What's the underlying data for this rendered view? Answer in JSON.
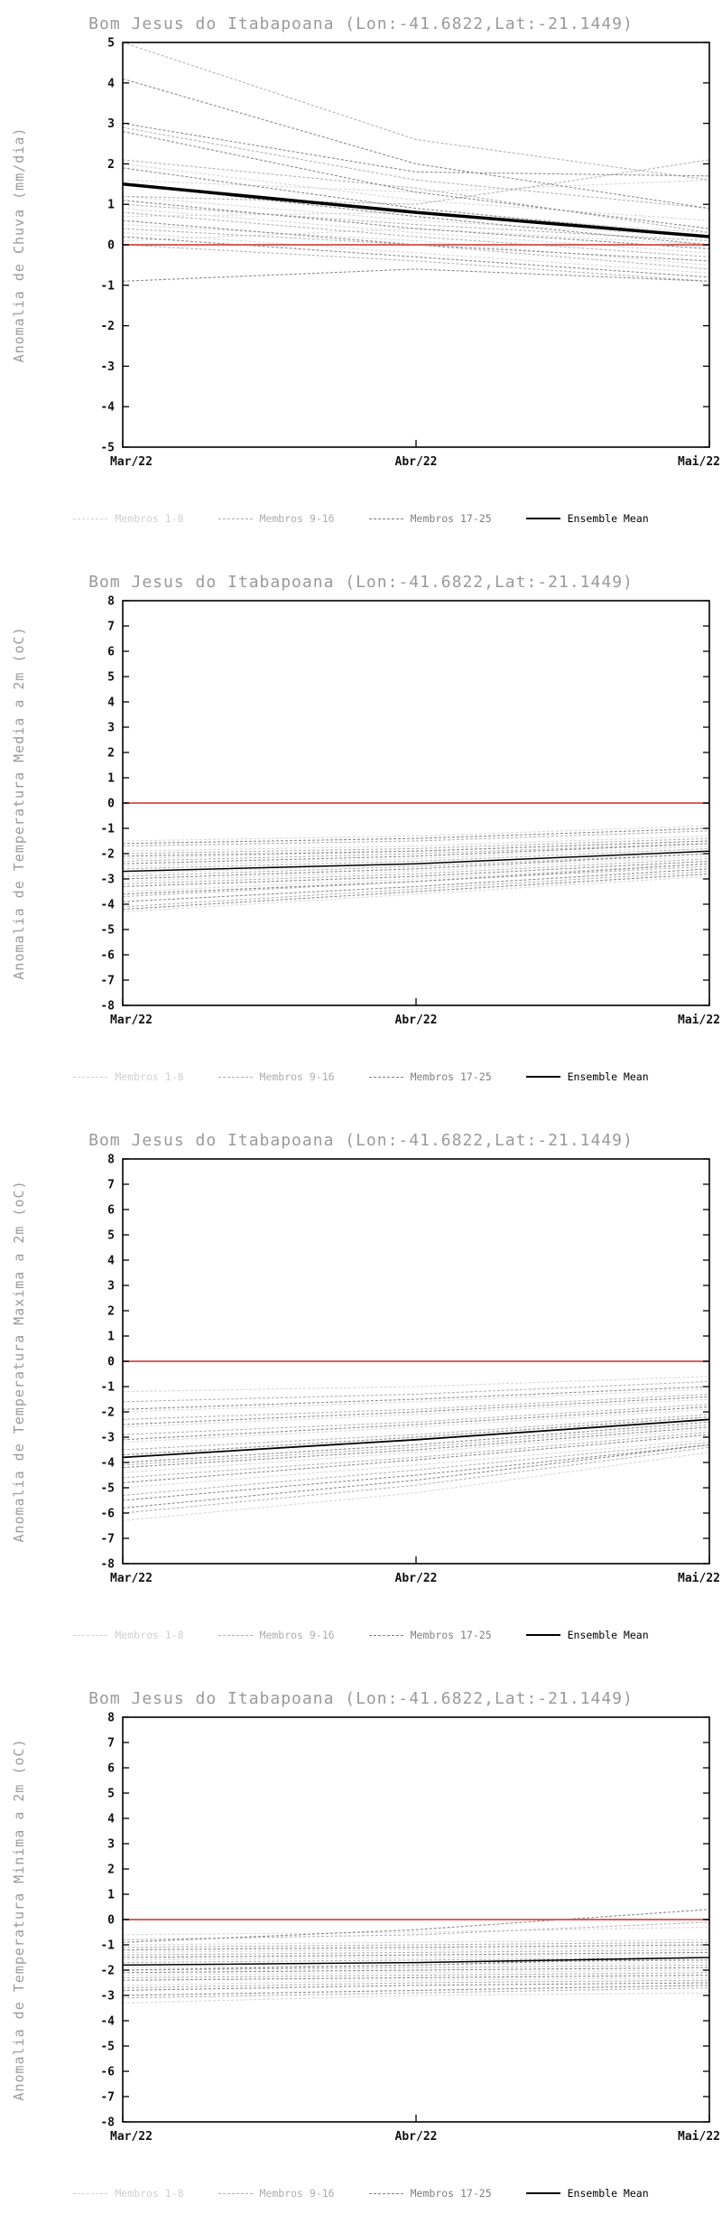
{
  "group_colors": [
    "#d8d8d8",
    "#b4b4b4",
    "#8c8c8c"
  ],
  "legend": {
    "items": [
      {
        "label": "Membros 1-8",
        "color": "#d0d0d0",
        "style": "dashed"
      },
      {
        "label": "Membros 9-16",
        "color": "#adadad",
        "style": "dashed"
      },
      {
        "label": "Membros 17-25",
        "color": "#808080",
        "style": "dashed"
      },
      {
        "label": "Ensemble Mean",
        "color": "#000000",
        "style": "solid"
      }
    ]
  },
  "chart_data": [
    {
      "type": "line",
      "title": "Bom Jesus do Itabapoana (Lon:-41.6822,Lat:-21.1449)",
      "ylabel": "Anomalia de Chuva (mm/dia)",
      "x": [
        "Mar/22",
        "Abr/22",
        "Mai/22"
      ],
      "ylim": [
        -5,
        5
      ],
      "ytick_step": 1,
      "zero_line_color": "#d9605c",
      "mean": {
        "name": "Ensemble Mean",
        "color": "#000000",
        "width": 3.5,
        "values": [
          1.5,
          0.8,
          0.2
        ]
      },
      "members": [
        {
          "g": 0,
          "v": [
            2.0,
            1.1,
            0.6
          ]
        },
        {
          "g": 0,
          "v": [
            1.6,
            1.3,
            1.6
          ]
        },
        {
          "g": 0,
          "v": [
            1.2,
            0.6,
            0.2
          ]
        },
        {
          "g": 0,
          "v": [
            0.9,
            0.3,
            -0.2
          ]
        },
        {
          "g": 0,
          "v": [
            0.7,
            0.8,
            0.3
          ]
        },
        {
          "g": 0,
          "v": [
            0.5,
            0.1,
            -0.5
          ]
        },
        {
          "g": 0,
          "v": [
            0.3,
            -0.2,
            -0.7
          ]
        },
        {
          "g": 0,
          "v": [
            0.1,
            0.4,
            0.0
          ]
        },
        {
          "g": 1,
          "v": [
            5.0,
            2.6,
            1.6
          ]
        },
        {
          "g": 1,
          "v": [
            2.9,
            1.6,
            0.9
          ]
        },
        {
          "g": 1,
          "v": [
            1.2,
            1.0,
            2.1
          ]
        },
        {
          "g": 1,
          "v": [
            2.1,
            1.4,
            0.3
          ]
        },
        {
          "g": 1,
          "v": [
            1.0,
            0.5,
            0.1
          ]
        },
        {
          "g": 1,
          "v": [
            0.8,
            0.2,
            -0.3
          ]
        },
        {
          "g": 1,
          "v": [
            0.4,
            0.0,
            -0.6
          ]
        },
        {
          "g": 1,
          "v": [
            0.0,
            -0.4,
            -0.9
          ]
        },
        {
          "g": 2,
          "v": [
            4.1,
            2.0,
            0.9
          ]
        },
        {
          "g": 2,
          "v": [
            3.0,
            1.8,
            1.7
          ]
        },
        {
          "g": 2,
          "v": [
            2.8,
            1.3,
            0.4
          ]
        },
        {
          "g": 2,
          "v": [
            1.9,
            0.9,
            0.2
          ]
        },
        {
          "g": 2,
          "v": [
            1.5,
            0.7,
            0.0
          ]
        },
        {
          "g": 2,
          "v": [
            1.1,
            0.4,
            -0.1
          ]
        },
        {
          "g": 2,
          "v": [
            0.6,
            0.0,
            -0.4
          ]
        },
        {
          "g": 2,
          "v": [
            0.2,
            -0.3,
            -0.8
          ]
        },
        {
          "g": 2,
          "v": [
            -0.9,
            -0.6,
            -0.9
          ]
        }
      ]
    },
    {
      "type": "line",
      "title": "Bom Jesus do Itabapoana (Lon:-41.6822,Lat:-21.1449)",
      "ylabel": "Anomalia de Temperatura Media a 2m (oC)",
      "x": [
        "Mar/22",
        "Abr/22",
        "Mai/22"
      ],
      "ylim": [
        -8,
        8
      ],
      "ytick_step": 1,
      "zero_line_color": "#d9605c",
      "mean": {
        "name": "Ensemble Mean",
        "color": "#000000",
        "width": 1.5,
        "values": [
          -2.7,
          -2.4,
          -1.9
        ]
      },
      "members": [
        {
          "g": 0,
          "v": [
            -1.5,
            -1.3,
            -0.9
          ]
        },
        {
          "g": 0,
          "v": [
            -1.9,
            -1.7,
            -1.3
          ]
        },
        {
          "g": 0,
          "v": [
            -2.2,
            -1.9,
            -1.5
          ]
        },
        {
          "g": 0,
          "v": [
            -2.5,
            -2.2,
            -1.7
          ]
        },
        {
          "g": 0,
          "v": [
            -2.8,
            -2.4,
            -1.9
          ]
        },
        {
          "g": 0,
          "v": [
            -3.1,
            -2.7,
            -2.1
          ]
        },
        {
          "g": 0,
          "v": [
            -3.5,
            -3.0,
            -2.4
          ]
        },
        {
          "g": 0,
          "v": [
            -4.3,
            -3.6,
            -2.9
          ]
        },
        {
          "g": 1,
          "v": [
            -1.7,
            -1.5,
            -1.1
          ]
        },
        {
          "g": 1,
          "v": [
            -2.0,
            -1.8,
            -1.4
          ]
        },
        {
          "g": 1,
          "v": [
            -2.3,
            -2.0,
            -1.6
          ]
        },
        {
          "g": 1,
          "v": [
            -2.6,
            -2.3,
            -1.8
          ]
        },
        {
          "g": 1,
          "v": [
            -2.9,
            -2.5,
            -2.0
          ]
        },
        {
          "g": 1,
          "v": [
            -3.2,
            -2.8,
            -2.2
          ]
        },
        {
          "g": 1,
          "v": [
            -3.7,
            -3.1,
            -2.5
          ]
        },
        {
          "g": 1,
          "v": [
            -4.1,
            -3.4,
            -2.7
          ]
        },
        {
          "g": 2,
          "v": [
            -1.6,
            -1.4,
            -1.0
          ]
        },
        {
          "g": 2,
          "v": [
            -2.1,
            -1.9,
            -1.5
          ]
        },
        {
          "g": 2,
          "v": [
            -2.4,
            -2.1,
            -1.6
          ]
        },
        {
          "g": 2,
          "v": [
            -2.7,
            -2.4,
            -1.9
          ]
        },
        {
          "g": 2,
          "v": [
            -3.0,
            -2.6,
            -2.0
          ]
        },
        {
          "g": 2,
          "v": [
            -3.3,
            -2.9,
            -2.3
          ]
        },
        {
          "g": 2,
          "v": [
            -3.6,
            -3.1,
            -2.4
          ]
        },
        {
          "g": 2,
          "v": [
            -3.9,
            -3.3,
            -2.6
          ]
        },
        {
          "g": 2,
          "v": [
            -4.2,
            -3.5,
            -2.8
          ]
        }
      ]
    },
    {
      "type": "line",
      "title": "Bom Jesus do Itabapoana (Lon:-41.6822,Lat:-21.1449)",
      "ylabel": "Anomalia de Temperatura Maxima a 2m (oC)",
      "x": [
        "Mar/22",
        "Abr/22",
        "Mai/22"
      ],
      "ylim": [
        -8,
        8
      ],
      "ytick_step": 1,
      "zero_line_color": "#d9605c",
      "mean": {
        "name": "Ensemble Mean",
        "color": "#000000",
        "width": 1.8,
        "values": [
          -3.8,
          -3.1,
          -2.3
        ]
      },
      "members": [
        {
          "g": 0,
          "v": [
            -1.2,
            -1.0,
            -0.6
          ]
        },
        {
          "g": 0,
          "v": [
            -2.0,
            -1.6,
            -1.1
          ]
        },
        {
          "g": 0,
          "v": [
            -2.6,
            -2.1,
            -1.5
          ]
        },
        {
          "g": 0,
          "v": [
            -3.2,
            -2.6,
            -1.9
          ]
        },
        {
          "g": 0,
          "v": [
            -3.8,
            -3.1,
            -2.3
          ]
        },
        {
          "g": 0,
          "v": [
            -4.4,
            -3.6,
            -2.7
          ]
        },
        {
          "g": 0,
          "v": [
            -5.0,
            -4.1,
            -3.1
          ]
        },
        {
          "g": 0,
          "v": [
            -6.3,
            -5.2,
            -3.6
          ]
        },
        {
          "g": 1,
          "v": [
            -1.6,
            -1.3,
            -0.8
          ]
        },
        {
          "g": 1,
          "v": [
            -2.3,
            -1.9,
            -1.3
          ]
        },
        {
          "g": 1,
          "v": [
            -2.9,
            -2.4,
            -1.7
          ]
        },
        {
          "g": 1,
          "v": [
            -3.5,
            -2.9,
            -2.1
          ]
        },
        {
          "g": 1,
          "v": [
            -4.1,
            -3.4,
            -2.5
          ]
        },
        {
          "g": 1,
          "v": [
            -4.6,
            -3.8,
            -2.8
          ]
        },
        {
          "g": 1,
          "v": [
            -5.3,
            -4.3,
            -3.2
          ]
        },
        {
          "g": 1,
          "v": [
            -6.0,
            -4.9,
            -3.4
          ]
        },
        {
          "g": 2,
          "v": [
            -1.9,
            -1.5,
            -1.0
          ]
        },
        {
          "g": 2,
          "v": [
            -2.5,
            -2.0,
            -1.4
          ]
        },
        {
          "g": 2,
          "v": [
            -3.1,
            -2.5,
            -1.8
          ]
        },
        {
          "g": 2,
          "v": [
            -3.7,
            -3.0,
            -2.2
          ]
        },
        {
          "g": 2,
          "v": [
            -4.2,
            -3.5,
            -2.6
          ]
        },
        {
          "g": 2,
          "v": [
            -4.8,
            -3.9,
            -2.9
          ]
        },
        {
          "g": 2,
          "v": [
            -5.5,
            -4.5,
            -3.3
          ]
        },
        {
          "g": 2,
          "v": [
            -5.8,
            -4.7,
            -3.3
          ]
        },
        {
          "g": 2,
          "v": [
            -4.0,
            -3.3,
            -2.4
          ]
        }
      ]
    },
    {
      "type": "line",
      "title": "Bom Jesus do Itabapoana (Lon:-41.6822,Lat:-21.1449)",
      "ylabel": "Anomalia de Temperatura Minima a 2m (oC)",
      "x": [
        "Mar/22",
        "Abr/22",
        "Mai/22"
      ],
      "ylim": [
        -8,
        8
      ],
      "ytick_step": 1,
      "zero_line_color": "#d9605c",
      "mean": {
        "name": "Ensemble Mean",
        "color": "#000000",
        "width": 1.5,
        "values": [
          -1.8,
          -1.7,
          -1.5
        ]
      },
      "members": [
        {
          "g": 0,
          "v": [
            -0.6,
            -0.5,
            -0.3
          ]
        },
        {
          "g": 0,
          "v": [
            -1.0,
            -0.9,
            -0.8
          ]
        },
        {
          "g": 0,
          "v": [
            -1.3,
            -1.2,
            -1.1
          ]
        },
        {
          "g": 0,
          "v": [
            -1.6,
            -1.5,
            -1.4
          ]
        },
        {
          "g": 0,
          "v": [
            -1.9,
            -1.8,
            -1.7
          ]
        },
        {
          "g": 0,
          "v": [
            -2.2,
            -2.1,
            -2.0
          ]
        },
        {
          "g": 0,
          "v": [
            -2.6,
            -2.4,
            -2.3
          ]
        },
        {
          "g": 0,
          "v": [
            -3.3,
            -3.0,
            -2.9
          ]
        },
        {
          "g": 1,
          "v": [
            -0.8,
            -0.6,
            -0.1
          ]
        },
        {
          "g": 1,
          "v": [
            -1.1,
            -1.0,
            -0.9
          ]
        },
        {
          "g": 1,
          "v": [
            -1.4,
            -1.3,
            -1.2
          ]
        },
        {
          "g": 1,
          "v": [
            -1.7,
            -1.6,
            -1.5
          ]
        },
        {
          "g": 1,
          "v": [
            -2.0,
            -1.9,
            -1.8
          ]
        },
        {
          "g": 1,
          "v": [
            -2.3,
            -2.2,
            -2.1
          ]
        },
        {
          "g": 1,
          "v": [
            -2.7,
            -2.5,
            -2.4
          ]
        },
        {
          "g": 1,
          "v": [
            -3.1,
            -2.9,
            -2.7
          ]
        },
        {
          "g": 2,
          "v": [
            -0.9,
            -0.4,
            0.4
          ]
        },
        {
          "g": 2,
          "v": [
            -1.2,
            -1.1,
            -1.0
          ]
        },
        {
          "g": 2,
          "v": [
            -1.5,
            -1.4,
            -1.3
          ]
        },
        {
          "g": 2,
          "v": [
            -1.8,
            -1.7,
            -1.6
          ]
        },
        {
          "g": 2,
          "v": [
            -2.1,
            -2.0,
            -1.9
          ]
        },
        {
          "g": 2,
          "v": [
            -2.4,
            -2.3,
            -2.2
          ]
        },
        {
          "g": 2,
          "v": [
            -2.8,
            -2.6,
            -2.5
          ]
        },
        {
          "g": 2,
          "v": [
            -3.0,
            -2.8,
            -2.6
          ]
        },
        {
          "g": 2,
          "v": [
            -2.0,
            -1.8,
            -1.5
          ]
        }
      ]
    }
  ]
}
